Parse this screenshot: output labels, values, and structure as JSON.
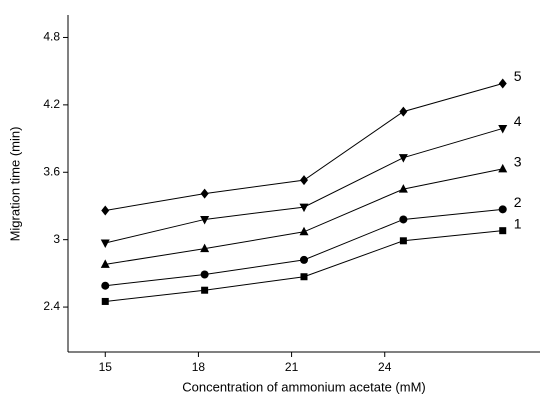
{
  "chart_data": {
    "type": "line",
    "x_label": "Concentration of ammonium acetate (mM)",
    "y_label": "Migration time (min)",
    "x": [
      15,
      18.2,
      21.4,
      24.6,
      27.8
    ],
    "xlim": [
      13.8,
      29
    ],
    "xticks": [
      15,
      18,
      21,
      24
    ],
    "ylim": [
      2.0,
      5.0
    ],
    "yticks": [
      2.4,
      3.0,
      3.6,
      4.2,
      4.8
    ],
    "series": [
      {
        "name": "1",
        "color": "#000000",
        "marker": "square",
        "values": [
          2.45,
          2.55,
          2.67,
          2.99,
          3.08
        ]
      },
      {
        "name": "2",
        "color": "#000000",
        "marker": "circle",
        "values": [
          2.59,
          2.69,
          2.82,
          3.18,
          3.27
        ]
      },
      {
        "name": "3",
        "color": "#000000",
        "marker": "triangle-up",
        "values": [
          2.78,
          2.92,
          3.07,
          3.45,
          3.63
        ]
      },
      {
        "name": "4",
        "color": "#000000",
        "marker": "triangle-down",
        "values": [
          2.97,
          3.18,
          3.29,
          3.73,
          3.99
        ]
      },
      {
        "name": "5",
        "color": "#000000",
        "marker": "diamond",
        "values": [
          3.26,
          3.41,
          3.53,
          4.14,
          4.39
        ]
      }
    ]
  }
}
